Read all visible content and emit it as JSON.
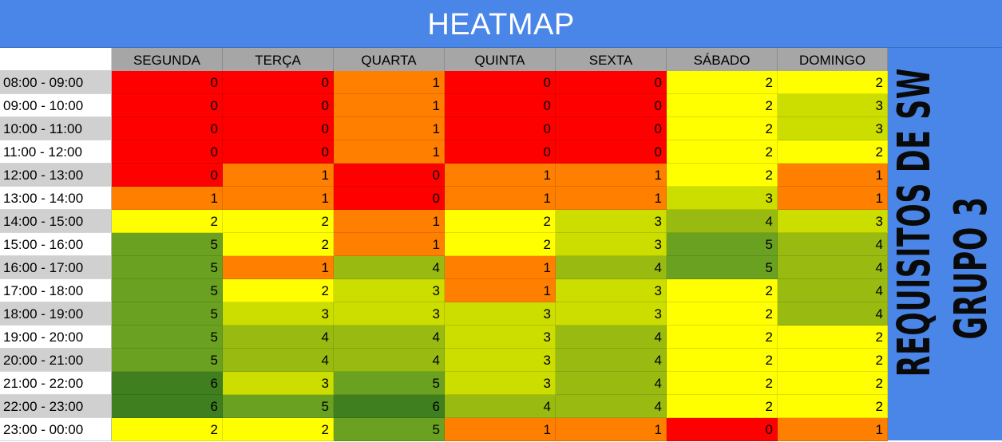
{
  "title": "HEATMAP",
  "side_label": {
    "line1": "REQUISITOS DE SW",
    "line2": "GRUPO 3"
  },
  "colors": {
    "title_bg": "#4a86e8",
    "header_bg": "#a6a6a6",
    "row_header_alt": "#d0d0d0",
    "scale": {
      "0": "#ff0000",
      "1": "#ff7f00",
      "2": "#ffff00",
      "3": "#ccdd00",
      "4": "#99bb11",
      "5": "#6aa121",
      "6": "#3f7f1f"
    }
  },
  "chart_data": {
    "type": "heatmap",
    "title": "HEATMAP",
    "columns": [
      "SEGUNDA",
      "TERÇA",
      "QUARTA",
      "QUINTA",
      "SEXTA",
      "SÁBADO",
      "DOMINGO"
    ],
    "rows": [
      "08:00 - 09:00",
      "09:00 - 10:00",
      "10:00 - 11:00",
      "11:00 - 12:00",
      "12:00 - 13:00",
      "13:00 - 14:00",
      "14:00 - 15:00",
      "15:00 - 16:00",
      "16:00 - 17:00",
      "17:00 - 18:00",
      "18:00 - 19:00",
      "19:00 - 20:00",
      "20:00 - 21:00",
      "21:00 - 22:00",
      "22:00 - 23:00",
      "23:00 - 00:00"
    ],
    "values": [
      [
        0,
        0,
        1,
        0,
        0,
        2,
        2
      ],
      [
        0,
        0,
        1,
        0,
        0,
        2,
        3
      ],
      [
        0,
        0,
        1,
        0,
        0,
        2,
        3
      ],
      [
        0,
        0,
        1,
        0,
        0,
        2,
        2
      ],
      [
        0,
        1,
        0,
        1,
        1,
        2,
        1
      ],
      [
        1,
        1,
        0,
        1,
        1,
        3,
        1
      ],
      [
        2,
        2,
        1,
        2,
        3,
        4,
        3
      ],
      [
        5,
        2,
        1,
        2,
        3,
        5,
        4
      ],
      [
        5,
        1,
        4,
        1,
        4,
        5,
        4
      ],
      [
        5,
        2,
        3,
        1,
        3,
        2,
        4
      ],
      [
        5,
        3,
        3,
        3,
        3,
        2,
        4
      ],
      [
        5,
        4,
        4,
        3,
        4,
        2,
        2
      ],
      [
        5,
        4,
        4,
        3,
        4,
        2,
        2
      ],
      [
        6,
        3,
        5,
        3,
        4,
        2,
        2
      ],
      [
        6,
        5,
        6,
        4,
        4,
        2,
        2
      ],
      [
        2,
        2,
        5,
        1,
        1,
        0,
        1
      ]
    ]
  }
}
